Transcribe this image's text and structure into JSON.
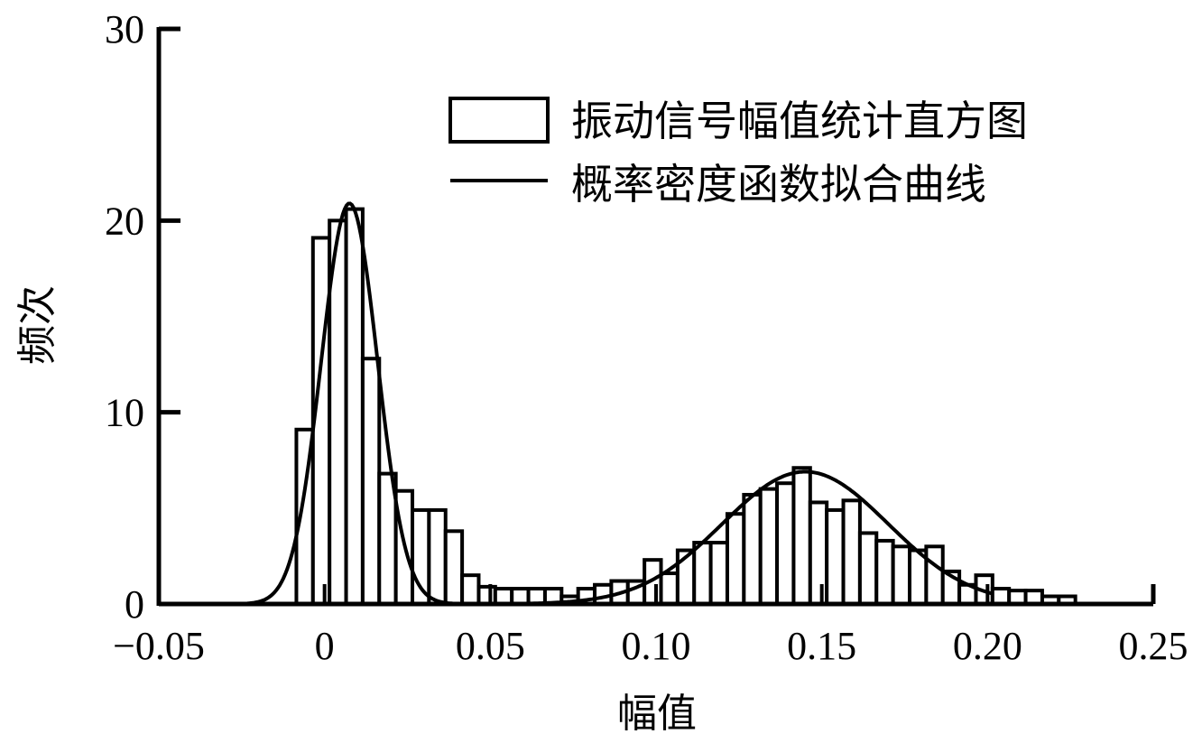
{
  "chart_data": {
    "type": "bar",
    "title": "",
    "xlabel": "幅值",
    "ylabel": "频次",
    "xlim": [
      -0.05,
      0.25
    ],
    "ylim": [
      0,
      30
    ],
    "xticks": [
      -0.05,
      0,
      0.05,
      0.1,
      0.15,
      0.2,
      0.25
    ],
    "xtick_labels": [
      "−0.05",
      "0",
      "0.05",
      "0.10",
      "0.15",
      "0.20",
      "0.25"
    ],
    "yticks": [
      0,
      10,
      20,
      30
    ],
    "ytick_labels": [
      "0",
      "10",
      "20",
      "30"
    ],
    "grid": false,
    "legend_position": "upper right",
    "legend": [
      {
        "label": "振动信号幅值统计直方图",
        "type": "bar"
      },
      {
        "label": "概率密度函数拟合曲线",
        "type": "line"
      }
    ],
    "bin_width": 0.005,
    "series": [
      {
        "name": "振动信号幅值统计直方图",
        "type": "histogram",
        "bin_starts": [
          -0.0085,
          -0.0035,
          0.0015,
          0.0065,
          0.0115,
          0.0165,
          0.0215,
          0.0265,
          0.0315,
          0.0365,
          0.0415,
          0.0465,
          0.0515,
          0.0565,
          0.0615,
          0.0665,
          0.0715,
          0.0765,
          0.0815,
          0.0865,
          0.0915,
          0.0965,
          0.1015,
          0.1065,
          0.1115,
          0.1165,
          0.1215,
          0.1265,
          0.1315,
          0.1365,
          0.1415,
          0.1465,
          0.1515,
          0.1565,
          0.1615,
          0.1665,
          0.1715,
          0.1765,
          0.1815,
          0.1865,
          0.1915,
          0.1965,
          0.2015,
          0.2065,
          0.2115,
          0.2165,
          0.2215
        ],
        "values": [
          9.1,
          19.1,
          20.0,
          20.6,
          12.8,
          6.8,
          5.9,
          4.9,
          4.9,
          3.8,
          1.5,
          0.9,
          0.8,
          0.8,
          0.8,
          0.8,
          0.4,
          0.8,
          1.0,
          1.2,
          1.2,
          2.3,
          1.6,
          2.8,
          3.2,
          3.2,
          4.7,
          5.7,
          6.0,
          6.3,
          7.1,
          5.3,
          4.9,
          5.4,
          3.7,
          3.3,
          3.0,
          2.8,
          3.0,
          1.7,
          1.0,
          1.5,
          0.8,
          0.7,
          0.7,
          0.4,
          0.4
        ]
      },
      {
        "name": "概率密度函数拟合曲线",
        "type": "line",
        "components": [
          {
            "mean": 0.0075,
            "std": 0.0085,
            "peak": 20.9
          },
          {
            "mean": 0.145,
            "std": 0.025,
            "peak": 6.9
          }
        ]
      }
    ]
  }
}
